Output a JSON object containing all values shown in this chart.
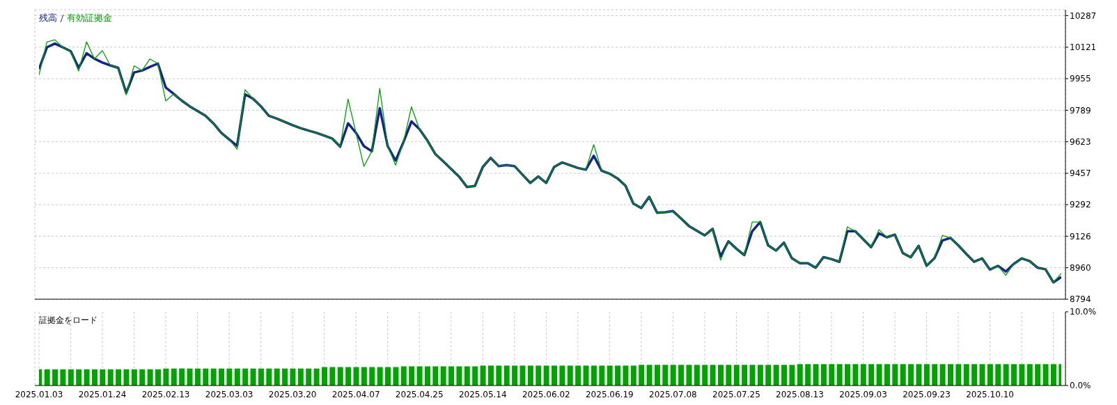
{
  "chart_data": [
    {
      "type": "line",
      "legend": "top left",
      "grid": true,
      "tick_labels": "y",
      "line_style": "solid",
      "categories": [
        "2025.01.03",
        null,
        null,
        null,
        null,
        null,
        null,
        null,
        "2025.01.24",
        null,
        null,
        null,
        null,
        null,
        null,
        null,
        "2025.02.13",
        null,
        null,
        null,
        null,
        null,
        null,
        null,
        "2025.03.03",
        null,
        null,
        null,
        null,
        null,
        null,
        null,
        "2025.03.20",
        null,
        null,
        null,
        null,
        null,
        null,
        null,
        "2025.04.07",
        null,
        null,
        null,
        null,
        null,
        null,
        null,
        "2025.04.25",
        null,
        null,
        null,
        null,
        null,
        null,
        null,
        "2025.05.14",
        null,
        null,
        null,
        null,
        null,
        null,
        null,
        "2025.06.02",
        null,
        null,
        null,
        null,
        null,
        null,
        null,
        "2025.06.19",
        null,
        null,
        null,
        null,
        null,
        null,
        null,
        "2025.07.08",
        null,
        null,
        null,
        null,
        null,
        null,
        null,
        "2025.07.25",
        null,
        null,
        null,
        null,
        null,
        null,
        null,
        "2025.08.13",
        null,
        null,
        null,
        null,
        null,
        null,
        null,
        "2025.09.03",
        null,
        null,
        null,
        null,
        null,
        null,
        null,
        "2025.09.23",
        null,
        null,
        null,
        null,
        null,
        null,
        null,
        "2025.10.10",
        null,
        null,
        null,
        null,
        null,
        null,
        null,
        null,
        null
      ],
      "ylim": [
        8794,
        10318
      ],
      "yticks": [
        8794,
        8960,
        9126,
        9292,
        9457,
        9623,
        9789,
        9955,
        10121,
        10287
      ],
      "series": [
        {
          "name": "残高",
          "color": "#14248c",
          "values": [
            10005,
            10120,
            10140,
            10120,
            10100,
            10012,
            10089,
            10060,
            10040,
            10025,
            10012,
            9880,
            9988,
            9998,
            10017,
            10035,
            9908,
            9875,
            9840,
            9810,
            9785,
            9760,
            9720,
            9670,
            9635,
            9601,
            9873,
            9850,
            9810,
            9760,
            9745,
            9728,
            9710,
            9695,
            9682,
            9670,
            9655,
            9640,
            9597,
            9720,
            9670,
            9600,
            9573,
            9800,
            9600,
            9524,
            9622,
            9730,
            9690,
            9630,
            9559,
            9520,
            9480,
            9440,
            9385,
            9390,
            9490,
            9538,
            9495,
            9500,
            9495,
            9450,
            9406,
            9440,
            9406,
            9490,
            9514,
            9500,
            9485,
            9476,
            9549,
            9470,
            9455,
            9430,
            9392,
            9298,
            9274,
            9333,
            9249,
            9252,
            9258,
            9220,
            9180,
            9155,
            9130,
            9165,
            9019,
            9099,
            9060,
            9026,
            9152,
            9200,
            9078,
            9050,
            9092,
            9010,
            8984,
            8984,
            8960,
            9016,
            9005,
            8991,
            9152,
            9152,
            9110,
            9068,
            9141,
            9120,
            9134,
            9037,
            9015,
            9075,
            8970,
            9010,
            9103,
            9117,
            9078,
            9033,
            8991,
            9009,
            8950,
            8970,
            8940,
            8980,
            9009,
            8995,
            8960,
            8952,
            8883,
            8911
          ]
        },
        {
          "name": "有効証拠金",
          "color": "#00a000",
          "values": [
            9974,
            10148,
            10160,
            10120,
            10100,
            9995,
            10149,
            10060,
            10103,
            10025,
            10012,
            9870,
            10023,
            9998,
            10059,
            10035,
            9838,
            9875,
            9840,
            9810,
            9785,
            9760,
            9720,
            9670,
            9635,
            9584,
            9897,
            9850,
            9810,
            9760,
            9745,
            9728,
            9710,
            9695,
            9682,
            9670,
            9655,
            9640,
            9597,
            9848,
            9670,
            9493,
            9573,
            9904,
            9600,
            9500,
            9622,
            9807,
            9690,
            9630,
            9559,
            9520,
            9480,
            9440,
            9385,
            9390,
            9490,
            9538,
            9495,
            9500,
            9495,
            9450,
            9406,
            9440,
            9406,
            9490,
            9514,
            9500,
            9485,
            9476,
            9608,
            9470,
            9455,
            9430,
            9392,
            9298,
            9274,
            9333,
            9249,
            9252,
            9258,
            9220,
            9180,
            9155,
            9130,
            9165,
            9000,
            9099,
            9060,
            9026,
            9200,
            9200,
            9078,
            9050,
            9092,
            9010,
            8984,
            8984,
            8960,
            9016,
            9005,
            8991,
            9175,
            9152,
            9110,
            9068,
            9160,
            9120,
            9134,
            9037,
            9015,
            9075,
            8970,
            9010,
            9130,
            9117,
            9078,
            9033,
            8991,
            9009,
            8950,
            8970,
            8920,
            8980,
            9009,
            8995,
            8960,
            8952,
            8883,
            8930
          ]
        }
      ]
    },
    {
      "type": "bar",
      "title": "証拠金をロード",
      "grid": "x",
      "color": "#00a400",
      "categories": [
        "2025.01.03",
        null,
        null,
        null,
        null,
        null,
        null,
        null,
        "2025.01.24",
        null,
        null,
        null,
        null,
        null,
        null,
        null,
        "2025.02.13",
        null,
        null,
        null,
        null,
        null,
        null,
        null,
        "2025.03.03",
        null,
        null,
        null,
        null,
        null,
        null,
        null,
        "2025.03.20",
        null,
        null,
        null,
        null,
        null,
        null,
        null,
        "2025.04.07",
        null,
        null,
        null,
        null,
        null,
        null,
        null,
        "2025.04.25",
        null,
        null,
        null,
        null,
        null,
        null,
        null,
        "2025.05.14",
        null,
        null,
        null,
        null,
        null,
        null,
        null,
        "2025.06.02",
        null,
        null,
        null,
        null,
        null,
        null,
        null,
        "2025.06.19",
        null,
        null,
        null,
        null,
        null,
        null,
        null,
        "2025.07.08",
        null,
        null,
        null,
        null,
        null,
        null,
        null,
        "2025.07.25",
        null,
        null,
        null,
        null,
        null,
        null,
        null,
        "2025.08.13",
        null,
        null,
        null,
        null,
        null,
        null,
        null,
        "2025.09.03",
        null,
        null,
        null,
        null,
        null,
        null,
        null,
        "2025.09.23",
        null,
        null,
        null,
        null,
        null,
        null,
        null,
        "2025.10.10",
        null,
        null,
        null,
        null,
        null,
        null,
        null,
        null,
        null
      ],
      "values": [
        2.2,
        2.2,
        2.2,
        2.2,
        2.2,
        2.2,
        2.2,
        2.2,
        2.2,
        2.2,
        2.2,
        2.2,
        2.2,
        2.2,
        2.2,
        2.2,
        2.3,
        2.3,
        2.3,
        2.3,
        2.3,
        2.3,
        2.3,
        2.3,
        2.3,
        2.3,
        2.3,
        2.3,
        2.3,
        2.3,
        2.3,
        2.3,
        2.3,
        2.3,
        2.3,
        2.3,
        2.5,
        2.5,
        2.5,
        2.5,
        2.5,
        2.5,
        2.5,
        2.5,
        2.5,
        2.5,
        2.6,
        2.6,
        2.6,
        2.6,
        2.6,
        2.6,
        2.6,
        2.6,
        2.6,
        2.6,
        2.7,
        2.7,
        2.7,
        2.7,
        2.7,
        2.7,
        2.7,
        2.7,
        2.7,
        2.7,
        2.7,
        2.7,
        2.7,
        2.7,
        2.7,
        2.7,
        2.7,
        2.7,
        2.7,
        2.7,
        2.8,
        2.8,
        2.8,
        2.8,
        2.8,
        2.8,
        2.8,
        2.8,
        2.8,
        2.8,
        2.8,
        2.8,
        2.8,
        2.8,
        2.8,
        2.8,
        2.8,
        2.8,
        2.8,
        2.8,
        2.9,
        2.9,
        2.9,
        2.9,
        2.9,
        2.9,
        2.9,
        2.9,
        2.9,
        2.9,
        2.9,
        2.9,
        2.9,
        2.9,
        2.9,
        2.9,
        2.9,
        2.9,
        2.9,
        2.9,
        2.9,
        2.9,
        2.9,
        2.9,
        2.9,
        2.9,
        2.9,
        2.9,
        2.9,
        2.9,
        2.9,
        2.9,
        2.9,
        2.9
      ],
      "ylim": [
        0,
        10
      ],
      "yticks": [
        {
          "value": 0,
          "label": "0.0%"
        },
        {
          "value": 10,
          "label": "10.0%"
        }
      ]
    }
  ]
}
